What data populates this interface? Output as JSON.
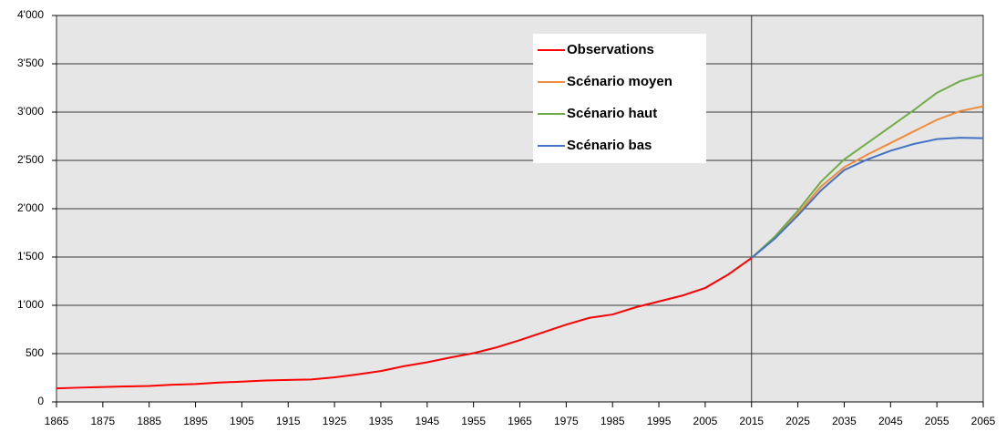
{
  "chart_data": {
    "type": "line",
    "x": [
      1865,
      1870,
      1875,
      1880,
      1885,
      1890,
      1895,
      1900,
      1905,
      1910,
      1915,
      1920,
      1925,
      1930,
      1935,
      1940,
      1945,
      1950,
      1955,
      1960,
      1965,
      1970,
      1975,
      1980,
      1985,
      1990,
      1995,
      2000,
      2005,
      2010,
      2015,
      2020,
      2025,
      2030,
      2035,
      2040,
      2045,
      2050,
      2055,
      2060,
      2065
    ],
    "series": [
      {
        "name": "Observations",
        "color": "#ff0000",
        "values": [
          140,
          148,
          155,
          160,
          165,
          178,
          185,
          200,
          210,
          222,
          228,
          232,
          255,
          285,
          320,
          370,
          410,
          460,
          505,
          565,
          640,
          720,
          800,
          870,
          905,
          980,
          1040,
          1100,
          1180,
          1320,
          1490,
          null,
          null,
          null,
          null,
          null,
          null,
          null,
          null,
          null,
          null
        ]
      },
      {
        "name": "Scénario moyen",
        "color": "#f08c3c",
        "values": [
          null,
          null,
          null,
          null,
          null,
          null,
          null,
          null,
          null,
          null,
          null,
          null,
          null,
          null,
          null,
          null,
          null,
          null,
          null,
          null,
          null,
          null,
          null,
          null,
          null,
          null,
          null,
          null,
          null,
          null,
          1490,
          1700,
          1950,
          2230,
          2430,
          2560,
          2680,
          2800,
          2920,
          3010,
          3060
        ]
      },
      {
        "name": "Scénario haut",
        "color": "#70ad47",
        "values": [
          null,
          null,
          null,
          null,
          null,
          null,
          null,
          null,
          null,
          null,
          null,
          null,
          null,
          null,
          null,
          null,
          null,
          null,
          null,
          null,
          null,
          null,
          null,
          null,
          null,
          null,
          null,
          null,
          null,
          null,
          1490,
          1710,
          1980,
          2280,
          2510,
          2680,
          2850,
          3020,
          3200,
          3320,
          3390
        ]
      },
      {
        "name": "Scénario bas",
        "color": "#4472c4",
        "values": [
          null,
          null,
          null,
          null,
          null,
          null,
          null,
          null,
          null,
          null,
          null,
          null,
          null,
          null,
          null,
          null,
          null,
          null,
          null,
          null,
          null,
          null,
          null,
          null,
          null,
          null,
          null,
          null,
          null,
          null,
          1490,
          1690,
          1930,
          2190,
          2400,
          2510,
          2600,
          2670,
          2720,
          2735,
          2730
        ]
      }
    ],
    "xlim": [
      1865,
      2065
    ],
    "xticks": [
      1865,
      1875,
      1885,
      1895,
      1905,
      1915,
      1925,
      1935,
      1945,
      1955,
      1965,
      1975,
      1985,
      1995,
      2005,
      2015,
      2025,
      2035,
      2045,
      2055,
      2065
    ],
    "ylim": [
      0,
      4000
    ],
    "yticks": [
      0,
      500,
      {
        "value": 1000,
        "label": "1'000"
      },
      {
        "value": 1500,
        "label": "1'500"
      },
      {
        "value": 2000,
        "label": "2'000"
      },
      {
        "value": 2500,
        "label": "2'500"
      },
      {
        "value": 3000,
        "label": "3'000"
      },
      {
        "value": 3500,
        "label": "3'500"
      },
      {
        "value": 4000,
        "label": "4'000"
      }
    ],
    "vline": 2015,
    "grid": true
  }
}
